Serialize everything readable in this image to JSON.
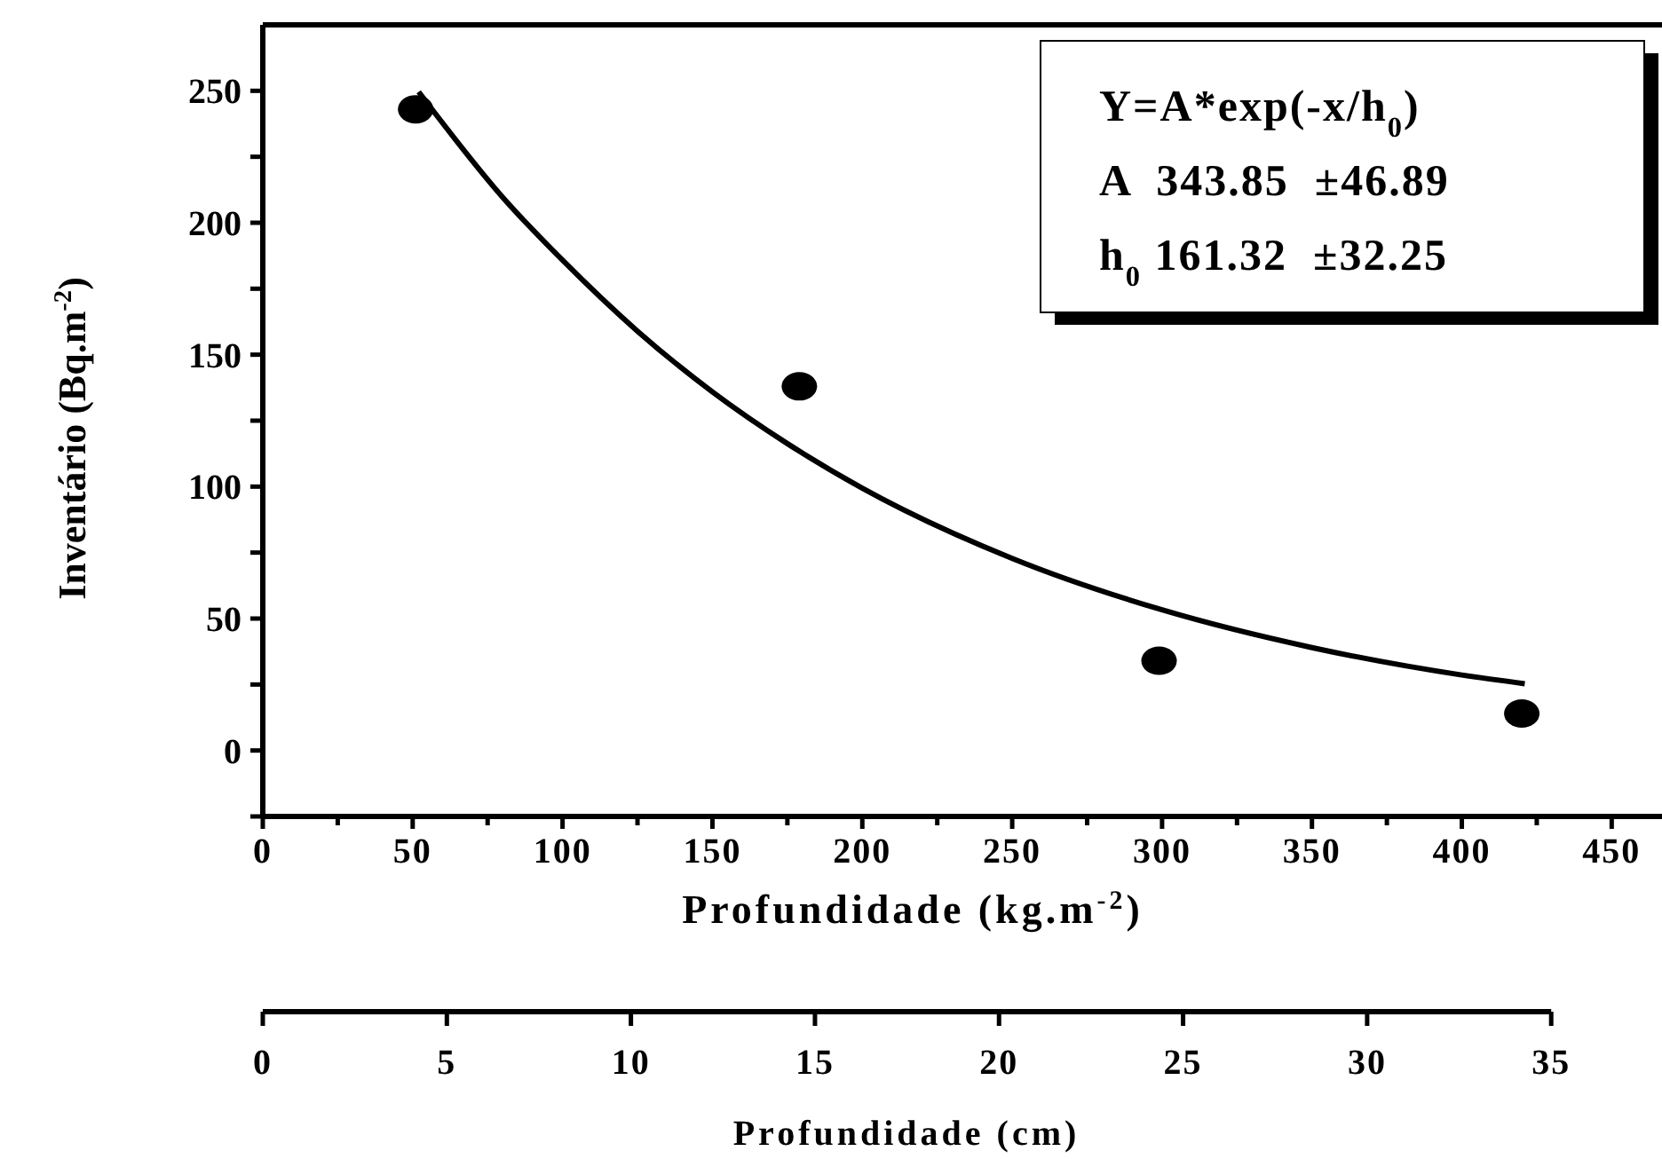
{
  "chart_data": {
    "type": "scatter",
    "xlabel": "Profundidade (kg.m$^{-2}$)",
    "ylabel": "Inventário (Bq.m$^{-2}$)",
    "x2label": "Profundidade (cm)",
    "xlim": [
      0,
      465
    ],
    "ylim": [
      -25,
      275
    ],
    "xticks": [
      0,
      {
        "value": 25,
        "label": null
      },
      50,
      {
        "value": 75,
        "label": null
      },
      100,
      {
        "value": 125,
        "label": null
      },
      150,
      {
        "value": 175,
        "label": null
      },
      200,
      {
        "value": 225,
        "label": null
      },
      250,
      {
        "value": 275,
        "label": null
      },
      300,
      {
        "value": 325,
        "label": null
      },
      350,
      {
        "value": 375,
        "label": null
      },
      400,
      {
        "value": 425,
        "label": null
      },
      450
    ],
    "yticks": [
      {
        "value": -25,
        "label": null
      },
      0,
      {
        "value": 25,
        "label": null
      },
      50,
      {
        "value": 75,
        "label": null
      },
      100,
      {
        "value": 125,
        "label": null
      },
      150,
      {
        "value": 175,
        "label": null
      },
      200,
      {
        "value": 225,
        "label": null
      },
      250
    ],
    "x2lim": [
      0,
      35
    ],
    "x2ticks": [
      0,
      5,
      10,
      15,
      20,
      25,
      30,
      35
    ],
    "grid": false,
    "series": [
      {
        "color": "#000000",
        "marker": "circle",
        "x": [
          51,
          179,
          299,
          420
        ],
        "values": [
          243,
          138,
          34,
          14
        ]
      },
      {
        "type": "line",
        "color": "#000000",
        "line_style": "solid",
        "marker": "none",
        "x": [
          52,
          80,
          100,
          125,
          150,
          175,
          200,
          250,
          300,
          350,
          400,
          421
        ],
        "values": [
          249.6,
          209.7,
          185.8,
          158.9,
          135.9,
          116.3,
          99.4,
          72.8,
          53.3,
          39.0,
          28.6,
          25.3
        ]
      }
    ],
    "annotations": [
      "Y=A*exp(-x/h$_{0}$)",
      "A  343.85  ±46.89",
      "h$_{0}$ 161.32  ±32.25"
    ]
  }
}
